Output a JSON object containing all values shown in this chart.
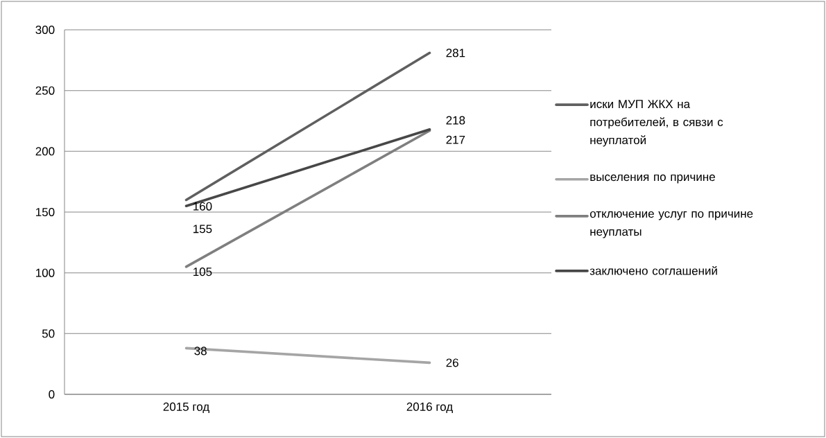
{
  "chart_data": {
    "type": "line",
    "categories": [
      "2015 год",
      "2016 год"
    ],
    "series": [
      {
        "name": "иски МУП ЖКХ на потребителей, в сявзи с неуплатой",
        "color": "#5f5f5f",
        "values": [
          160,
          281
        ]
      },
      {
        "name": "выселения по причине",
        "color": "#a5a5a5",
        "values": [
          38,
          26
        ]
      },
      {
        "name": "отключение услуг по причине неуплаты",
        "color": "#7f7f7f",
        "values": [
          105,
          217
        ]
      },
      {
        "name": "заключено соглашений",
        "color": "#474747",
        "values": [
          155,
          218
        ]
      }
    ],
    "ylim": [
      0,
      300
    ],
    "yticks": [
      0,
      50,
      100,
      150,
      200,
      250,
      300
    ],
    "grid": "y",
    "legend": "right",
    "data_labels": true,
    "line_style": "solid"
  }
}
